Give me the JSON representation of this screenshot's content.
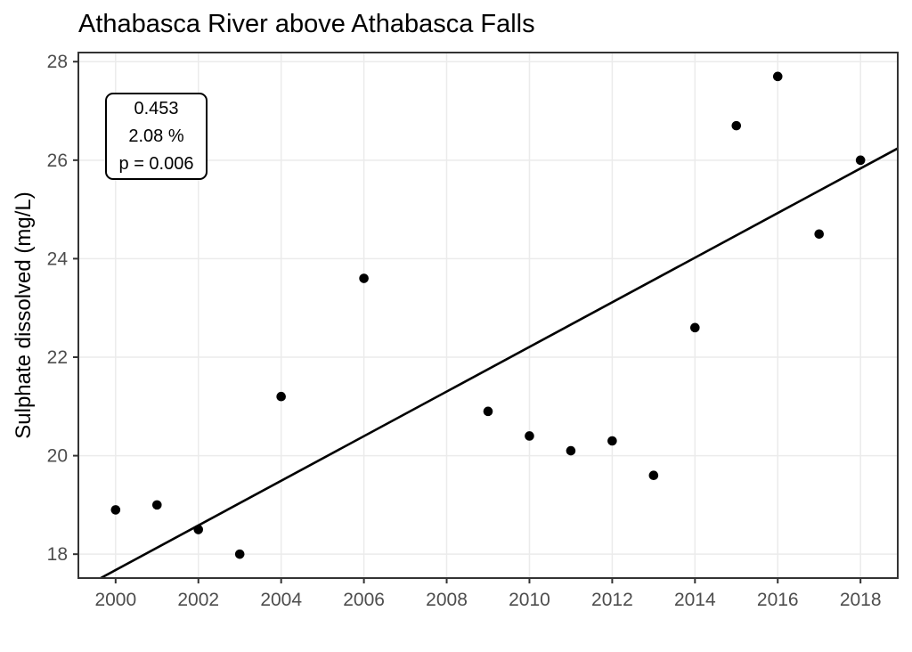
{
  "header": {
    "title": "Athabasca River above Athabasca Falls"
  },
  "annotation": {
    "lines": [
      "0.453",
      "2.08 %",
      "p = 0.006"
    ]
  },
  "chart_data": {
    "type": "scatter",
    "title": "Athabasca River above Athabasca Falls",
    "xlabel": "",
    "ylabel": "Sulphate dissolved (mg/L)",
    "xlim": [
      1999.1,
      2018.9
    ],
    "ylim": [
      17.515,
      28.185
    ],
    "xticks": [
      2000,
      2002,
      2004,
      2006,
      2008,
      2010,
      2012,
      2014,
      2016,
      2018
    ],
    "yticks": [
      18,
      20,
      22,
      24,
      26,
      28
    ],
    "grid": "major-only",
    "legend": "none",
    "points": [
      {
        "x": 2000,
        "y": 18.9
      },
      {
        "x": 2001,
        "y": 19.0
      },
      {
        "x": 2002,
        "y": 18.5
      },
      {
        "x": 2003,
        "y": 18.0
      },
      {
        "x": 2004,
        "y": 21.2
      },
      {
        "x": 2006,
        "y": 23.6
      },
      {
        "x": 2009,
        "y": 20.9
      },
      {
        "x": 2010,
        "y": 20.4
      },
      {
        "x": 2011,
        "y": 20.1
      },
      {
        "x": 2012,
        "y": 20.3
      },
      {
        "x": 2013,
        "y": 19.6
      },
      {
        "x": 2014,
        "y": 22.6
      },
      {
        "x": 2015,
        "y": 26.7
      },
      {
        "x": 2016,
        "y": 27.7
      },
      {
        "x": 2017,
        "y": 24.5
      },
      {
        "x": 2018,
        "y": 26.0
      }
    ],
    "trend": {
      "type": "linear",
      "slope_per_year": 0.453,
      "percent_per_year": 2.08,
      "p_value": 0.006,
      "x1": 1999.64,
      "y1": 17.515,
      "x2": 2018.9,
      "y2": 26.24
    },
    "colors": {
      "point": "#000000",
      "trend_line": "#000000",
      "gridline": "#EBEBEB",
      "panel_border": "#333333",
      "axis_text": "#4D4D4D",
      "title_text": "#000000",
      "background": "#FFFFFF"
    }
  }
}
